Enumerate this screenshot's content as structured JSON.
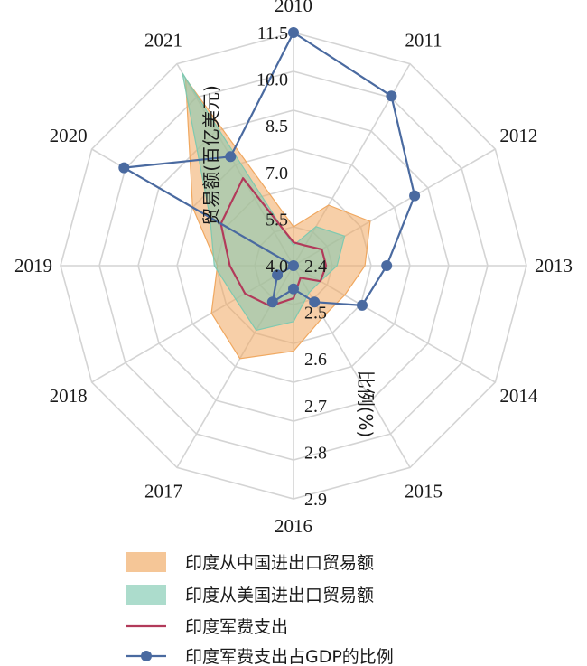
{
  "chart_data": {
    "type": "radar",
    "categories": [
      "2010",
      "2011",
      "2012",
      "2013",
      "2014",
      "2015",
      "2016",
      "2017",
      "2018",
      "2019",
      "2020",
      "2021"
    ],
    "left_axis": {
      "title": "贸易额(百亿美元)",
      "ticks": [
        "4.0",
        "5.5",
        "7.0",
        "8.5",
        "10.0",
        "11.5"
      ],
      "range": [
        4.0,
        11.5
      ]
    },
    "right_axis": {
      "title": "比例(%)",
      "ticks": [
        "2.4",
        "2.5",
        "2.6",
        "2.7",
        "2.8",
        "2.9"
      ],
      "range": [
        2.4,
        2.9
      ]
    },
    "series": [
      {
        "name": "印度从中国进出口贸易额",
        "axis": "left",
        "type": "area",
        "color": "#f0a860",
        "values": [
          5.25,
          6.25,
          6.85,
          6.3,
          5.9,
          5.9,
          6.75,
          7.45,
          7.05,
          6.45,
          7.75,
          10.95
        ]
      },
      {
        "name": "印度从美国进出口贸易额",
        "axis": "left",
        "type": "area",
        "color": "#7fc9b0",
        "values": [
          4.65,
          5.45,
          5.9,
          5.4,
          5.0,
          5.0,
          5.8,
          6.4,
          6.15,
          6.55,
          7.1,
          11.15
        ]
      },
      {
        "name": "印度军费支出",
        "axis": "left",
        "type": "line",
        "color": "#b23a5a",
        "values": [
          4.75,
          4.75,
          5.05,
          5.05,
          5.0,
          4.45,
          5.05,
          5.5,
          5.8,
          6.05,
          6.7,
          7.25
        ]
      },
      {
        "name": "印度军费支出占GDP的比例",
        "axis": "right",
        "type": "line-marker",
        "color": "#4a6aa0",
        "values": [
          2.9,
          2.82,
          2.7,
          2.6,
          2.57,
          2.49,
          2.45,
          2.49,
          2.44,
          2.4,
          2.82,
          2.67
        ]
      }
    ],
    "grid": true,
    "legend_position": "bottom"
  }
}
